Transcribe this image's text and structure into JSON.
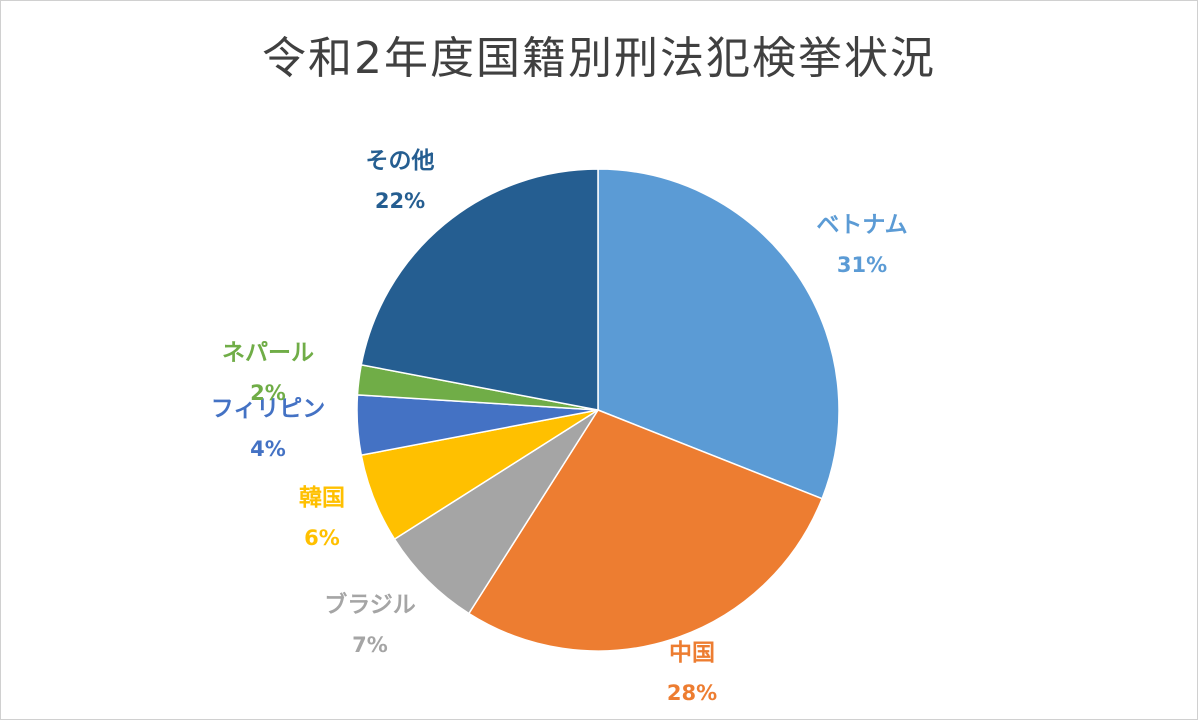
{
  "chart_data": {
    "type": "pie",
    "title": "令和2年度国籍別刑法犯検挙状況",
    "start_angle": "12 o'clock",
    "direction": "clockwise",
    "legend": "none",
    "slices": [
      {
        "name": "ベトナム",
        "value": 31,
        "pct_label": "31%",
        "color": "#5B9BD5"
      },
      {
        "name": "中国",
        "value": 28,
        "pct_label": "28%",
        "color": "#ED7D31"
      },
      {
        "name": "ブラジル",
        "value": 7,
        "pct_label": "7%",
        "color": "#A5A5A5"
      },
      {
        "name": "韓国",
        "value": 6,
        "pct_label": "6%",
        "color": "#FFC000"
      },
      {
        "name": "フィリピン",
        "value": 4,
        "pct_label": "4%",
        "color": "#4472C4"
      },
      {
        "name": "ネパール",
        "value": 2,
        "pct_label": "2%",
        "color": "#70AD47"
      },
      {
        "name": "その他",
        "value": 22,
        "pct_label": "22%",
        "color": "#255E91"
      }
    ]
  }
}
